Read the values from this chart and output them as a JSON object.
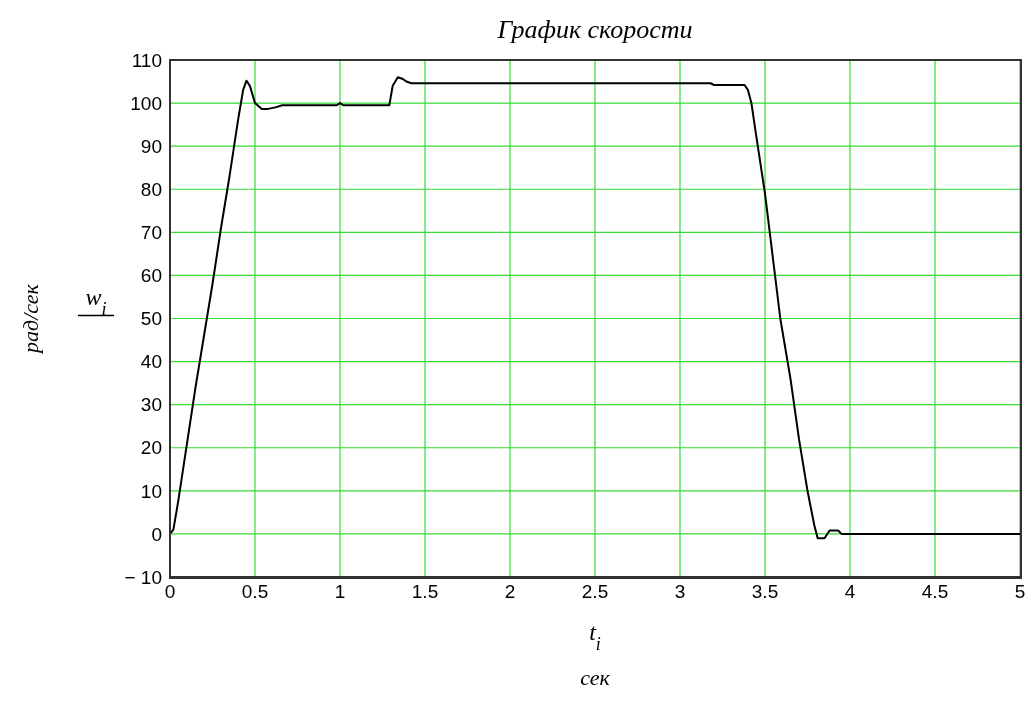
{
  "chart_data": {
    "type": "line",
    "title": "График скорости",
    "xlabel": "t$_{i}$",
    "ylabel": "w$_{i}$",
    "annotations": [
      "рад/сек",
      "сек"
    ],
    "x": [
      0,
      0.02,
      0.05,
      0.1,
      0.15,
      0.2,
      0.25,
      0.3,
      0.35,
      0.4,
      0.43,
      0.45,
      0.47,
      0.5,
      0.54,
      0.57,
      0.62,
      0.66,
      0.98,
      1.0,
      1.02,
      1.29,
      1.31,
      1.34,
      1.37,
      1.39,
      1.42,
      3.18,
      3.2,
      3.38,
      3.4,
      3.42,
      3.45,
      3.5,
      3.59,
      3.65,
      3.7,
      3.75,
      3.79,
      3.81,
      3.83,
      3.85,
      3.88,
      3.93,
      3.95,
      4.0,
      5.0
    ],
    "series": [
      {
        "color": "#000000",
        "values": [
          0,
          1,
          8,
          21,
          34,
          46,
          58,
          71,
          83,
          96,
          103,
          105.2,
          104,
          100,
          98.6,
          98.6,
          99,
          99.5,
          99.5,
          100,
          99.5,
          99.5,
          104,
          106,
          105.6,
          105,
          104.6,
          104.6,
          104.2,
          104.2,
          103,
          100,
          92,
          79,
          50,
          36,
          22,
          10,
          2,
          -1,
          -1,
          -1,
          0.8,
          0.8,
          0,
          0,
          0
        ]
      }
    ],
    "xlim": [
      0,
      5
    ],
    "xticks": [
      0,
      0.5,
      1,
      1.5,
      2,
      2.5,
      3,
      3.5,
      4,
      4.5,
      5
    ],
    "ylim": [
      -10,
      110
    ],
    "yticks": [
      -10,
      0,
      10,
      20,
      30,
      40,
      50,
      60,
      70,
      80,
      90,
      100,
      110
    ],
    "grid": true,
    "marker": "none",
    "line_style": "solid"
  }
}
